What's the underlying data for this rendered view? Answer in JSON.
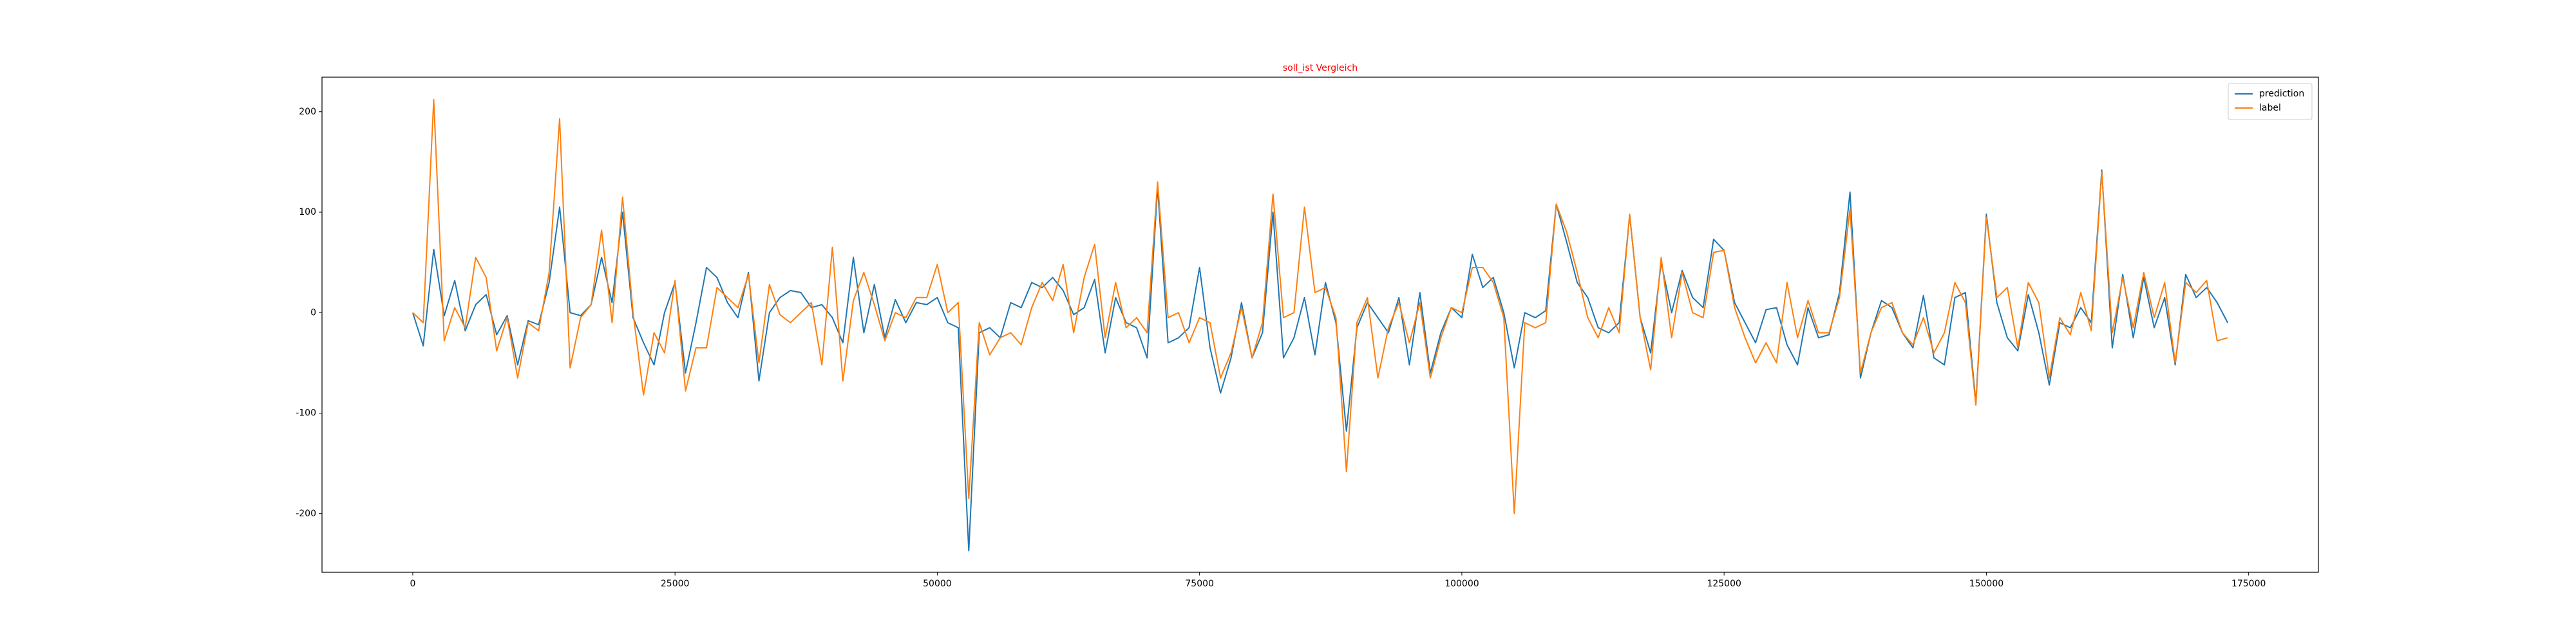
{
  "chart_data": {
    "type": "line",
    "title": "soll_ist Vergleich",
    "title_color": "#ff0000",
    "x": [
      0,
      1000,
      2000,
      3000,
      4000,
      5000,
      6000,
      7000,
      8000,
      9000,
      10000,
      11000,
      12000,
      13000,
      14000,
      15000,
      16000,
      17000,
      18000,
      19000,
      20000,
      21000,
      22000,
      23000,
      24000,
      25000,
      26000,
      27000,
      28000,
      29000,
      30000,
      31000,
      32000,
      33000,
      34000,
      35000,
      36000,
      37000,
      38000,
      39000,
      40000,
      41000,
      42000,
      43000,
      44000,
      45000,
      46000,
      47000,
      48000,
      49000,
      50000,
      51000,
      52000,
      53000,
      54000,
      55000,
      56000,
      57000,
      58000,
      59000,
      60000,
      61000,
      62000,
      63000,
      64000,
      65000,
      66000,
      67000,
      68000,
      69000,
      70000,
      71000,
      72000,
      73000,
      74000,
      75000,
      76000,
      77000,
      78000,
      79000,
      80000,
      81000,
      82000,
      83000,
      84000,
      85000,
      86000,
      87000,
      88000,
      89000,
      90000,
      91000,
      92000,
      93000,
      94000,
      95000,
      96000,
      97000,
      98000,
      99000,
      100000,
      101000,
      102000,
      103000,
      104000,
      105000,
      106000,
      107000,
      108000,
      109000,
      110000,
      111000,
      112000,
      113000,
      114000,
      115000,
      116000,
      117000,
      118000,
      119000,
      120000,
      121000,
      122000,
      123000,
      124000,
      125000,
      126000,
      127000,
      128000,
      129000,
      130000,
      131000,
      132000,
      133000,
      134000,
      135000,
      136000,
      137000,
      138000,
      139000,
      140000,
      141000,
      142000,
      143000,
      144000,
      145000,
      146000,
      147000,
      148000,
      149000,
      150000,
      151000,
      152000,
      153000,
      154000,
      155000,
      156000,
      157000,
      158000,
      159000,
      160000,
      161000,
      162000,
      163000,
      164000,
      165000,
      166000,
      167000,
      168000,
      169000,
      170000,
      171000,
      172000,
      173000
    ],
    "series": [
      {
        "name": "prediction",
        "color": "#1f77b4",
        "values": [
          0,
          -33,
          63,
          -3,
          32,
          -18,
          8,
          18,
          -22,
          -3,
          -52,
          -8,
          -12,
          30,
          105,
          0,
          -3,
          8,
          55,
          10,
          100,
          -5,
          -30,
          -52,
          0,
          30,
          -60,
          -10,
          45,
          35,
          10,
          -5,
          40,
          -68,
          0,
          15,
          22,
          20,
          5,
          8,
          -5,
          -30,
          55,
          -20,
          28,
          -25,
          13,
          -10,
          10,
          8,
          15,
          -10,
          -15,
          -237,
          -20,
          -15,
          -25,
          10,
          5,
          30,
          25,
          35,
          22,
          -2,
          5,
          33,
          -40,
          15,
          -10,
          -15,
          -45,
          125,
          -30,
          -25,
          -15,
          45,
          -35,
          -80,
          -45,
          10,
          -45,
          -20,
          100,
          -45,
          -25,
          15,
          -42,
          30,
          -10,
          -118,
          -15,
          10,
          -5,
          -20,
          15,
          -52,
          20,
          -60,
          -20,
          5,
          -5,
          58,
          25,
          35,
          0,
          -55,
          0,
          -5,
          2,
          108,
          70,
          30,
          15,
          -15,
          -20,
          -10,
          97,
          -5,
          -40,
          50,
          0,
          42,
          15,
          5,
          73,
          62,
          10,
          -10,
          -30,
          3,
          5,
          -32,
          -52,
          5,
          -25,
          -22,
          20,
          120,
          -65,
          -20,
          12,
          5,
          -20,
          -35,
          17,
          -45,
          -52,
          15,
          20,
          -90,
          98,
          10,
          -25,
          -38,
          18,
          -20,
          -72,
          -10,
          -15,
          5,
          -10,
          142,
          -35,
          38,
          -25,
          35,
          -15,
          15,
          -52,
          38,
          15,
          25,
          10,
          -10
        ]
      },
      {
        "name": "label",
        "color": "#ff7f0e",
        "values": [
          0,
          -10,
          212,
          -28,
          5,
          -15,
          55,
          35,
          -38,
          -5,
          -65,
          -10,
          -18,
          40,
          193,
          -55,
          -5,
          8,
          82,
          -10,
          115,
          0,
          -82,
          -20,
          -40,
          32,
          -78,
          -35,
          -35,
          25,
          15,
          5,
          38,
          -50,
          28,
          -2,
          -10,
          0,
          10,
          -52,
          65,
          -68,
          12,
          40,
          8,
          -28,
          0,
          -5,
          15,
          15,
          48,
          0,
          10,
          -185,
          -10,
          -42,
          -25,
          -20,
          -32,
          5,
          30,
          12,
          48,
          -20,
          35,
          68,
          -25,
          30,
          -15,
          -5,
          -20,
          130,
          -5,
          0,
          -30,
          -5,
          -10,
          -65,
          -40,
          5,
          -45,
          -10,
          118,
          -5,
          0,
          105,
          20,
          25,
          -5,
          -158,
          -10,
          15,
          -65,
          -15,
          10,
          -30,
          10,
          -65,
          -25,
          5,
          0,
          45,
          45,
          30,
          -5,
          -200,
          -10,
          -15,
          -10,
          108,
          80,
          40,
          -5,
          -25,
          5,
          -20,
          98,
          -5,
          -57,
          55,
          -25,
          40,
          0,
          -5,
          60,
          62,
          5,
          -25,
          -50,
          -30,
          -50,
          30,
          -25,
          12,
          -20,
          -20,
          15,
          103,
          -60,
          -20,
          5,
          10,
          -20,
          -32,
          -5,
          -40,
          -20,
          30,
          10,
          -92,
          95,
          15,
          25,
          -35,
          30,
          10,
          -65,
          -5,
          -22,
          20,
          -18,
          140,
          -20,
          35,
          -15,
          40,
          -5,
          30,
          -50,
          30,
          20,
          32,
          -28,
          -25
        ]
      }
    ],
    "xlim": [
      -8650,
      181650
    ],
    "ylim": [
      -258.4,
      234.4
    ],
    "xticks": [
      0,
      25000,
      50000,
      75000,
      100000,
      125000,
      150000,
      175000
    ],
    "yticks": [
      -200,
      -100,
      0,
      100,
      200
    ],
    "legend": "upper right"
  }
}
